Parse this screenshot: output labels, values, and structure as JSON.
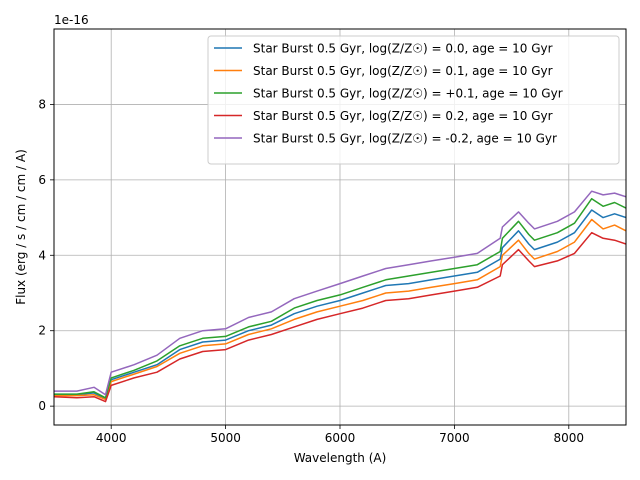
{
  "chart_data": {
    "type": "line",
    "title": "",
    "xlabel": "Wavelength (A)",
    "ylabel": "Flux (erg / s / cm / cm / A)",
    "y_offset_label": "1e-16",
    "xlim": [
      3500,
      8500
    ],
    "ylim": [
      -0.5,
      10.0
    ],
    "x_ticks": [
      4000,
      5000,
      6000,
      7000,
      8000
    ],
    "x_tick_labels": [
      "4000",
      "5000",
      "6000",
      "7000",
      "8000"
    ],
    "y_ticks": [
      0,
      2,
      4,
      6,
      8
    ],
    "y_tick_labels": [
      "0",
      "2",
      "4",
      "6",
      "8"
    ],
    "grid": true,
    "legend_position": "top-right",
    "series": [
      {
        "name": "Star Burst 0.5 Gyr, log(Z/Z☉) = 0.0, age = 10 Gyr",
        "color": "#1f77b4",
        "points": [
          [
            3500,
            0.3
          ],
          [
            3700,
            0.3
          ],
          [
            3850,
            0.35
          ],
          [
            3950,
            0.2
          ],
          [
            4000,
            0.7
          ],
          [
            4200,
            0.9
          ],
          [
            4400,
            1.1
          ],
          [
            4600,
            1.5
          ],
          [
            4800,
            1.7
          ],
          [
            5000,
            1.75
          ],
          [
            5200,
            2.0
          ],
          [
            5400,
            2.15
          ],
          [
            5600,
            2.45
          ],
          [
            5800,
            2.65
          ],
          [
            6000,
            2.8
          ],
          [
            6200,
            3.0
          ],
          [
            6400,
            3.2
          ],
          [
            6600,
            3.25
          ],
          [
            6800,
            3.35
          ],
          [
            7000,
            3.45
          ],
          [
            7200,
            3.55
          ],
          [
            7400,
            3.9
          ],
          [
            7420,
            4.2
          ],
          [
            7560,
            4.65
          ],
          [
            7650,
            4.3
          ],
          [
            7700,
            4.15
          ],
          [
            7900,
            4.35
          ],
          [
            8050,
            4.6
          ],
          [
            8200,
            5.2
          ],
          [
            8300,
            5.0
          ],
          [
            8400,
            5.1
          ],
          [
            8500,
            5.0
          ]
        ]
      },
      {
        "name": "Star Burst 0.5 Gyr, log(Z/Z☉) = 0.1, age = 10 Gyr",
        "color": "#ff7f0e",
        "points": [
          [
            3500,
            0.28
          ],
          [
            3700,
            0.28
          ],
          [
            3850,
            0.3
          ],
          [
            3950,
            0.18
          ],
          [
            4000,
            0.65
          ],
          [
            4200,
            0.85
          ],
          [
            4400,
            1.05
          ],
          [
            4600,
            1.4
          ],
          [
            4800,
            1.6
          ],
          [
            5000,
            1.65
          ],
          [
            5200,
            1.9
          ],
          [
            5400,
            2.05
          ],
          [
            5600,
            2.3
          ],
          [
            5800,
            2.5
          ],
          [
            6000,
            2.65
          ],
          [
            6200,
            2.8
          ],
          [
            6400,
            3.0
          ],
          [
            6600,
            3.05
          ],
          [
            6800,
            3.15
          ],
          [
            7000,
            3.25
          ],
          [
            7200,
            3.35
          ],
          [
            7400,
            3.7
          ],
          [
            7420,
            4.0
          ],
          [
            7560,
            4.4
          ],
          [
            7650,
            4.05
          ],
          [
            7700,
            3.9
          ],
          [
            7900,
            4.1
          ],
          [
            8050,
            4.35
          ],
          [
            8200,
            4.95
          ],
          [
            8300,
            4.7
          ],
          [
            8400,
            4.8
          ],
          [
            8500,
            4.65
          ]
        ]
      },
      {
        "name": "Star Burst 0.5 Gyr, log(Z/Z☉) = +0.1, age = 10 Gyr",
        "color": "#2ca02c",
        "points": [
          [
            3500,
            0.32
          ],
          [
            3700,
            0.32
          ],
          [
            3850,
            0.38
          ],
          [
            3950,
            0.22
          ],
          [
            4000,
            0.75
          ],
          [
            4200,
            0.95
          ],
          [
            4400,
            1.2
          ],
          [
            4600,
            1.6
          ],
          [
            4800,
            1.8
          ],
          [
            5000,
            1.85
          ],
          [
            5200,
            2.1
          ],
          [
            5400,
            2.25
          ],
          [
            5600,
            2.6
          ],
          [
            5800,
            2.8
          ],
          [
            6000,
            2.95
          ],
          [
            6200,
            3.15
          ],
          [
            6400,
            3.35
          ],
          [
            6600,
            3.45
          ],
          [
            6800,
            3.55
          ],
          [
            7000,
            3.65
          ],
          [
            7200,
            3.75
          ],
          [
            7400,
            4.1
          ],
          [
            7420,
            4.45
          ],
          [
            7560,
            4.9
          ],
          [
            7650,
            4.55
          ],
          [
            7700,
            4.4
          ],
          [
            7900,
            4.6
          ],
          [
            8050,
            4.85
          ],
          [
            8200,
            5.5
          ],
          [
            8300,
            5.3
          ],
          [
            8400,
            5.4
          ],
          [
            8500,
            5.25
          ]
        ]
      },
      {
        "name": "Star Burst 0.5 Gyr, log(Z/Z☉) = 0.2, age = 10 Gyr",
        "color": "#d62728",
        "points": [
          [
            3500,
            0.25
          ],
          [
            3700,
            0.22
          ],
          [
            3850,
            0.25
          ],
          [
            3950,
            0.12
          ],
          [
            4000,
            0.55
          ],
          [
            4200,
            0.75
          ],
          [
            4400,
            0.9
          ],
          [
            4600,
            1.25
          ],
          [
            4800,
            1.45
          ],
          [
            5000,
            1.5
          ],
          [
            5200,
            1.75
          ],
          [
            5400,
            1.9
          ],
          [
            5600,
            2.1
          ],
          [
            5800,
            2.3
          ],
          [
            6000,
            2.45
          ],
          [
            6200,
            2.6
          ],
          [
            6400,
            2.8
          ],
          [
            6600,
            2.85
          ],
          [
            6800,
            2.95
          ],
          [
            7000,
            3.05
          ],
          [
            7200,
            3.15
          ],
          [
            7400,
            3.45
          ],
          [
            7420,
            3.75
          ],
          [
            7560,
            4.15
          ],
          [
            7650,
            3.85
          ],
          [
            7700,
            3.7
          ],
          [
            7900,
            3.85
          ],
          [
            8050,
            4.05
          ],
          [
            8200,
            4.6
          ],
          [
            8300,
            4.45
          ],
          [
            8400,
            4.4
          ],
          [
            8500,
            4.3
          ]
        ]
      },
      {
        "name": "Star Burst 0.5 Gyr, log(Z/Z☉) = -0.2, age = 10 Gyr",
        "color": "#9467bd",
        "points": [
          [
            3500,
            0.4
          ],
          [
            3700,
            0.4
          ],
          [
            3850,
            0.5
          ],
          [
            3950,
            0.3
          ],
          [
            4000,
            0.9
          ],
          [
            4200,
            1.1
          ],
          [
            4400,
            1.35
          ],
          [
            4600,
            1.8
          ],
          [
            4800,
            2.0
          ],
          [
            5000,
            2.05
          ],
          [
            5200,
            2.35
          ],
          [
            5400,
            2.5
          ],
          [
            5600,
            2.85
          ],
          [
            5800,
            3.05
          ],
          [
            6000,
            3.25
          ],
          [
            6200,
            3.45
          ],
          [
            6400,
            3.65
          ],
          [
            6600,
            3.75
          ],
          [
            6800,
            3.85
          ],
          [
            7000,
            3.95
          ],
          [
            7200,
            4.05
          ],
          [
            7400,
            4.45
          ],
          [
            7420,
            4.75
          ],
          [
            7560,
            5.15
          ],
          [
            7650,
            4.85
          ],
          [
            7700,
            4.7
          ],
          [
            7900,
            4.9
          ],
          [
            8050,
            5.15
          ],
          [
            8200,
            5.7
          ],
          [
            8300,
            5.6
          ],
          [
            8400,
            5.65
          ],
          [
            8500,
            5.55
          ]
        ]
      }
    ]
  }
}
